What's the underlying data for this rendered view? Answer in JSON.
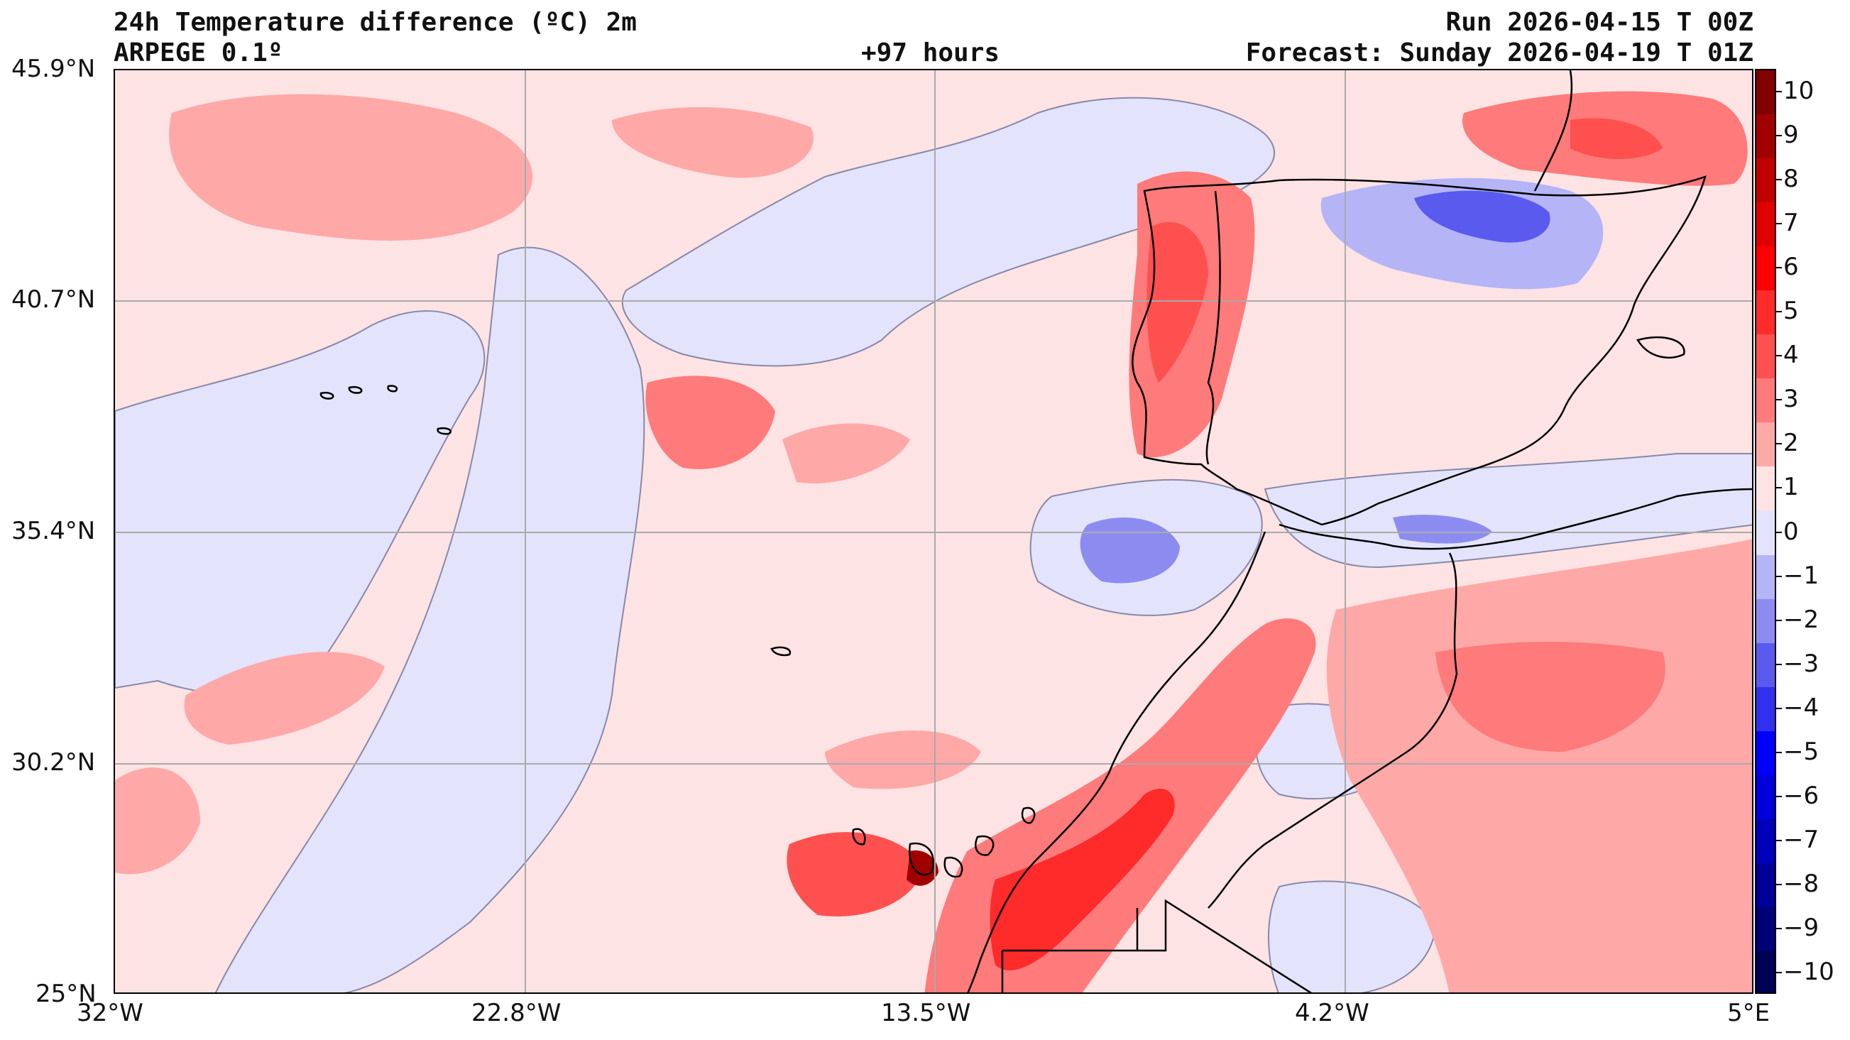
{
  "header": {
    "title": "24h Temperature difference (ºC) 2m",
    "model": "ARPEGE 0.1º",
    "lead_time": "+97 hours",
    "run": "Run 2026-04-15 T 00Z",
    "forecast": "Forecast: Sunday 2026-04-19 T 01Z"
  },
  "axes": {
    "lat_labels": [
      "45.9°N",
      "40.7°N",
      "35.4°N",
      "30.2°N",
      "25°N"
    ],
    "lon_labels": [
      "32°W",
      "22.8°W",
      "13.5°W",
      "4.2°W",
      "5°E"
    ]
  },
  "colorbar": {
    "labels": [
      "10",
      "9",
      "8",
      "7",
      "6",
      "5",
      "4",
      "3",
      "2",
      "1",
      "0",
      "−1",
      "−2",
      "−3",
      "−4",
      "−5",
      "−6",
      "−7",
      "−8",
      "−9",
      "−10"
    ],
    "colors": [
      "#800000",
      "#a00000",
      "#c00000",
      "#e00000",
      "#ff0000",
      "#ff2a2a",
      "#ff5050",
      "#ff7a7a",
      "#ffa8a8",
      "#fde3e3",
      "#e3e3fb",
      "#b4b4f7",
      "#8c8cf0",
      "#5a5aee",
      "#3030ef",
      "#0000ff",
      "#0000dd",
      "#0000bb",
      "#000099",
      "#000077",
      "#000055"
    ]
  }
}
